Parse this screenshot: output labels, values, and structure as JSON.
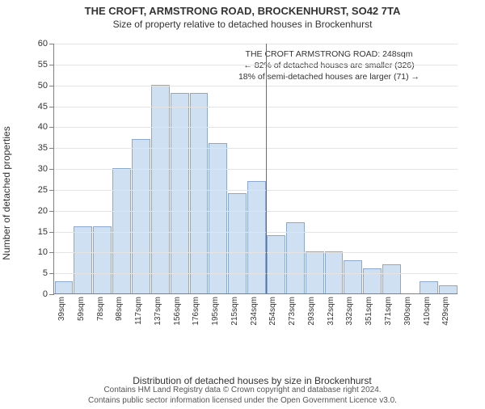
{
  "title": "THE CROFT, ARMSTRONG ROAD, BROCKENHURST, SO42 7TA",
  "subtitle": "Size of property relative to detached houses in Brockenhurst",
  "y_axis_label": "Number of detached properties",
  "x_axis_label": "Distribution of detached houses by size in Brockenhurst",
  "chart": {
    "type": "histogram",
    "y": {
      "min": 0,
      "max": 60,
      "step": 5
    },
    "bar_fill": "#cfe0f3",
    "bar_stroke": "#8aa8d0",
    "grid_color": "#e4e4e4",
    "axis_color": "#808080",
    "marker_color": "#d34040",
    "marker_index": 11,
    "bins": [
      {
        "label": "39sqm",
        "value": 3
      },
      {
        "label": "59sqm",
        "value": 16
      },
      {
        "label": "78sqm",
        "value": 16
      },
      {
        "label": "98sqm",
        "value": 30
      },
      {
        "label": "117sqm",
        "value": 37
      },
      {
        "label": "137sqm",
        "value": 50
      },
      {
        "label": "156sqm",
        "value": 48
      },
      {
        "label": "176sqm",
        "value": 48
      },
      {
        "label": "195sqm",
        "value": 36
      },
      {
        "label": "215sqm",
        "value": 24
      },
      {
        "label": "234sqm",
        "value": 27
      },
      {
        "label": "254sqm",
        "value": 14
      },
      {
        "label": "273sqm",
        "value": 17
      },
      {
        "label": "293sqm",
        "value": 10
      },
      {
        "label": "312sqm",
        "value": 10
      },
      {
        "label": "332sqm",
        "value": 8
      },
      {
        "label": "351sqm",
        "value": 6
      },
      {
        "label": "371sqm",
        "value": 7
      },
      {
        "label": "390sqm",
        "value": 0
      },
      {
        "label": "410sqm",
        "value": 3
      },
      {
        "label": "429sqm",
        "value": 2
      }
    ]
  },
  "annotation": {
    "line1": "THE CROFT ARMSTRONG ROAD: 248sqm",
    "line2": "← 82% of detached houses are smaller (326)",
    "line3": "18% of semi-detached houses are larger (71) →"
  },
  "footer": {
    "line1": "Contains HM Land Registry data © Crown copyright and database right 2024.",
    "line2": "Contains public sector information licensed under the Open Government Licence v3.0."
  }
}
